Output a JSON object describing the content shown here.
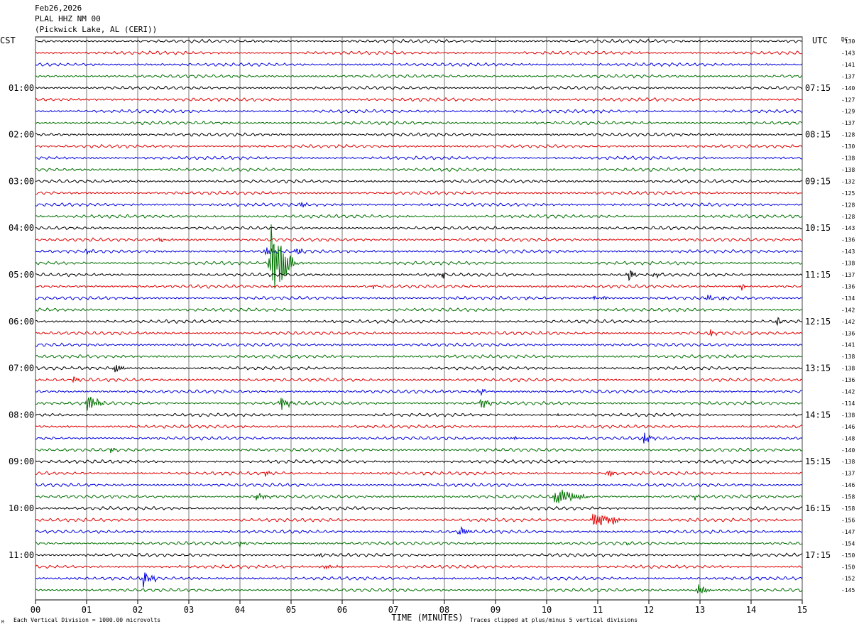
{
  "header": {
    "date": "Feb26,2026",
    "station": "PLAL HHZ NM 00",
    "location": "(Pickwick Lake, AL (CERI))"
  },
  "labels": {
    "left_tz": "CST",
    "right_tz": "UTC",
    "dc_label": "DC",
    "footer_left": "Each Vertical Division = 1000.00 microvolts",
    "footer_right": "Traces clipped at plus/minus 5 vertical divisions",
    "corner_mark": "M"
  },
  "chart_data": {
    "type": "line",
    "title": "",
    "xlabel": "TIME (MINUTES)",
    "ylabel": "",
    "xlim": [
      0,
      15
    ],
    "x_ticks": [
      "00",
      "01",
      "02",
      "03",
      "04",
      "05",
      "06",
      "07",
      "08",
      "09",
      "10",
      "11",
      "12",
      "13",
      "14",
      "15"
    ],
    "grid": true,
    "trace_colors": [
      "#000000",
      "#e00000",
      "#0000e0",
      "#007000"
    ],
    "left_hour_labels": [
      "01:00",
      "02:00",
      "03:00",
      "04:00",
      "05:00",
      "06:00",
      "07:00",
      "08:00",
      "09:00",
      "10:00",
      "11:00"
    ],
    "right_hour_labels": [
      "07:15",
      "08:15",
      "09:15",
      "10:15",
      "11:15",
      "12:15",
      "13:15",
      "14:15",
      "15:15",
      "16:15",
      "17:15"
    ],
    "dc_offsets": [
      -130,
      -143,
      -141,
      -137,
      -140,
      -127,
      -129,
      -137,
      -128,
      -130,
      -138,
      -138,
      -132,
      -125,
      -128,
      -128,
      -143,
      -136,
      -143,
      -138,
      -137,
      -136,
      -134,
      -142,
      -142,
      -136,
      -141,
      -138,
      -138,
      -136,
      -142,
      -114,
      -138,
      -146,
      -148,
      -140,
      -138,
      -137,
      -146,
      -158,
      -158,
      -156,
      -147,
      -154,
      -150,
      -150,
      -152,
      -145
    ],
    "events": [
      {
        "trace": 17,
        "minute": 2.4,
        "amp": 4,
        "dur": 0.25
      },
      {
        "trace": 18,
        "minute": 1.0,
        "amp": 5,
        "dur": 0.1
      },
      {
        "trace": 18,
        "minute": 4.5,
        "amp": 8,
        "dur": 0.25
      },
      {
        "trace": 18,
        "minute": 5.1,
        "amp": 7,
        "dur": 0.2
      },
      {
        "trace": 19,
        "minute": 4.6,
        "amp": 60,
        "dur": 0.4
      },
      {
        "trace": 19,
        "minute": 4.8,
        "amp": 10,
        "dur": 0.4
      },
      {
        "trace": 14,
        "minute": 5.2,
        "amp": 7,
        "dur": 0.1
      },
      {
        "trace": 20,
        "minute": 7.95,
        "amp": 8,
        "dur": 0.1
      },
      {
        "trace": 20,
        "minute": 11.6,
        "amp": 14,
        "dur": 0.15
      },
      {
        "trace": 20,
        "minute": 12.1,
        "amp": 6,
        "dur": 0.15
      },
      {
        "trace": 21,
        "minute": 6.6,
        "amp": 8,
        "dur": 0.08
      },
      {
        "trace": 21,
        "minute": 13.8,
        "amp": 9,
        "dur": 0.08
      },
      {
        "trace": 22,
        "minute": 10.9,
        "amp": 6,
        "dur": 0.1
      },
      {
        "trace": 22,
        "minute": 11.1,
        "amp": 5,
        "dur": 0.1
      },
      {
        "trace": 22,
        "minute": 13.15,
        "amp": 9,
        "dur": 0.1
      },
      {
        "trace": 22,
        "minute": 13.45,
        "amp": 4,
        "dur": 0.1
      },
      {
        "trace": 22,
        "minute": 9.6,
        "amp": 3,
        "dur": 0.1
      },
      {
        "trace": 24,
        "minute": 14.5,
        "amp": 9,
        "dur": 0.12
      },
      {
        "trace": 25,
        "minute": 13.2,
        "amp": 8,
        "dur": 0.1
      },
      {
        "trace": 28,
        "minute": 1.55,
        "amp": 9,
        "dur": 0.2
      },
      {
        "trace": 29,
        "minute": 0.75,
        "amp": 6,
        "dur": 0.15
      },
      {
        "trace": 30,
        "minute": 8.7,
        "amp": 9,
        "dur": 0.1
      },
      {
        "trace": 31,
        "minute": 1.0,
        "amp": 14,
        "dur": 0.35
      },
      {
        "trace": 31,
        "minute": 4.8,
        "amp": 10,
        "dur": 0.25
      },
      {
        "trace": 31,
        "minute": 8.7,
        "amp": 10,
        "dur": 0.25
      },
      {
        "trace": 32,
        "minute": 10.2,
        "amp": 4,
        "dur": 0.08
      },
      {
        "trace": 34,
        "minute": 9.35,
        "amp": 5,
        "dur": 0.08
      },
      {
        "trace": 34,
        "minute": 11.9,
        "amp": 9,
        "dur": 0.2
      },
      {
        "trace": 35,
        "minute": 1.45,
        "amp": 6,
        "dur": 0.15
      },
      {
        "trace": 37,
        "minute": 4.5,
        "amp": 5,
        "dur": 0.12
      },
      {
        "trace": 37,
        "minute": 11.2,
        "amp": 7,
        "dur": 0.15
      },
      {
        "trace": 39,
        "minute": 4.3,
        "amp": 6,
        "dur": 0.4
      },
      {
        "trace": 39,
        "minute": 10.15,
        "amp": 16,
        "dur": 0.6
      },
      {
        "trace": 39,
        "minute": 12.9,
        "amp": 5,
        "dur": 0.1
      },
      {
        "trace": 41,
        "minute": 10.9,
        "amp": 12,
        "dur": 0.6
      },
      {
        "trace": 41,
        "minute": 11.3,
        "amp": 6,
        "dur": 0.1
      },
      {
        "trace": 42,
        "minute": 8.3,
        "amp": 12,
        "dur": 0.2
      },
      {
        "trace": 43,
        "minute": 4.0,
        "amp": 6,
        "dur": 0.1
      },
      {
        "trace": 43,
        "minute": 11.55,
        "amp": 4,
        "dur": 0.08
      },
      {
        "trace": 44,
        "minute": 5.55,
        "amp": 5,
        "dur": 0.1
      },
      {
        "trace": 45,
        "minute": 5.6,
        "amp": 4,
        "dur": 0.5
      },
      {
        "trace": 46,
        "minute": 2.1,
        "amp": 16,
        "dur": 0.25
      },
      {
        "trace": 47,
        "minute": 12.95,
        "amp": 11,
        "dur": 0.25
      }
    ]
  }
}
